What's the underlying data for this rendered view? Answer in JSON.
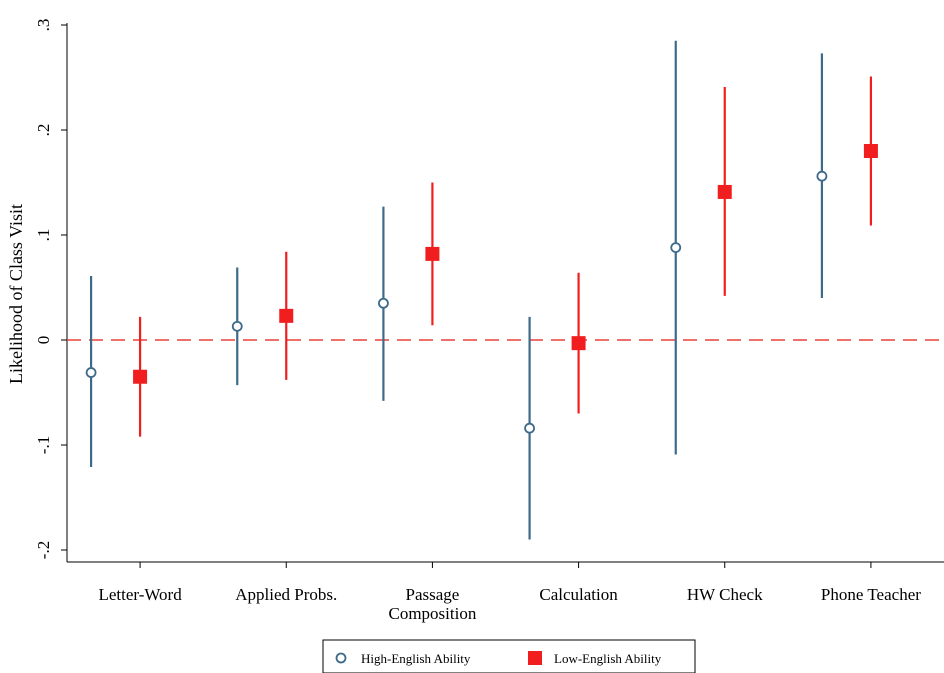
{
  "chart_data": {
    "type": "scatter",
    "ylabel": "Likelihood of Class Visit",
    "xlabel": "",
    "ylim": [
      -0.2,
      0.3
    ],
    "yticks": [
      {
        "value": -0.2,
        "label": "-.2"
      },
      {
        "value": -0.1,
        "label": "-.1"
      },
      {
        "value": 0,
        "label": "0"
      },
      {
        "value": 0.1,
        "label": ".1"
      },
      {
        "value": 0.2,
        "label": ".2"
      },
      {
        "value": 0.3,
        "label": ".3"
      }
    ],
    "categories": [
      [
        "Letter-Word"
      ],
      [
        "Applied Probs."
      ],
      [
        "Passage",
        "Composition"
      ],
      [
        "Calculation"
      ],
      [
        "HW Check"
      ],
      [
        "Phone Teacher"
      ]
    ],
    "reference_line": {
      "y": 0,
      "style": "dashed",
      "color": "#e8413a"
    },
    "grid": false,
    "legend": {
      "placement": "bottom"
    },
    "series": [
      {
        "name": "High-English Ability",
        "marker": "hollow-circle",
        "color": "#3e6a8a",
        "points": [
          {
            "y": -0.031,
            "lo": -0.121,
            "hi": 0.061
          },
          {
            "y": 0.013,
            "lo": -0.043,
            "hi": 0.069
          },
          {
            "y": 0.035,
            "lo": -0.058,
            "hi": 0.127
          },
          {
            "y": -0.084,
            "lo": -0.19,
            "hi": 0.022
          },
          {
            "y": 0.088,
            "lo": -0.109,
            "hi": 0.285
          },
          {
            "y": 0.156,
            "lo": 0.04,
            "hi": 0.273
          }
        ]
      },
      {
        "name": "Low-English Ability",
        "marker": "filled-square",
        "color": "#f01e1e",
        "points": [
          {
            "y": -0.035,
            "lo": -0.092,
            "hi": 0.022
          },
          {
            "y": 0.023,
            "lo": -0.038,
            "hi": 0.084
          },
          {
            "y": 0.082,
            "lo": 0.014,
            "hi": 0.15
          },
          {
            "y": -0.003,
            "lo": -0.07,
            "hi": 0.064
          },
          {
            "y": 0.141,
            "lo": 0.042,
            "hi": 0.241
          },
          {
            "y": 0.18,
            "lo": 0.109,
            "hi": 0.251
          }
        ]
      }
    ]
  }
}
